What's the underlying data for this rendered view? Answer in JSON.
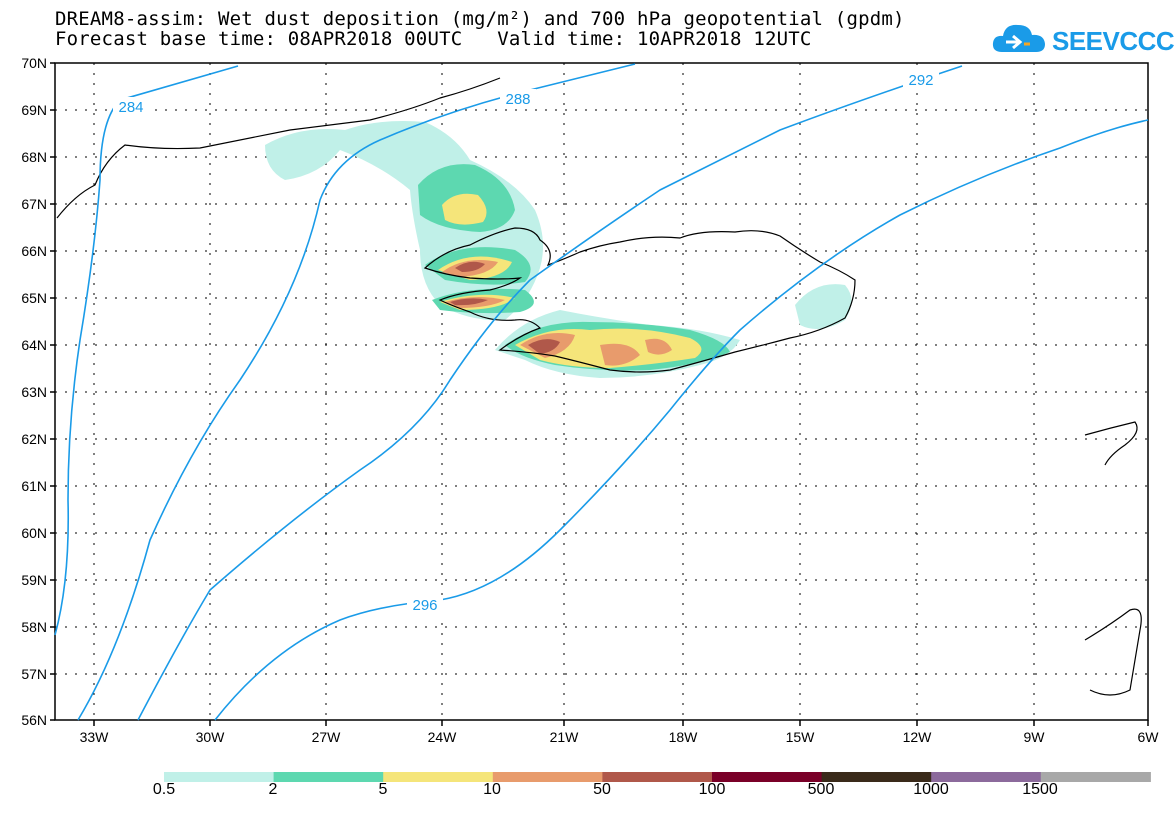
{
  "header": {
    "title_line1": "DREAM8-assim: Wet dust deposition (mg/m²) and 700 hPa geopotential (gpdm)",
    "title_line2": "Forecast base time: 08APR2018 00UTC   Valid time: 10APR2018 12UTC",
    "logo_text": "SEEVCCC"
  },
  "axes": {
    "lat_labels": [
      "70N",
      "69N",
      "68N",
      "67N",
      "66N",
      "65N",
      "64N",
      "63N",
      "62N",
      "61N",
      "60N",
      "59N",
      "58N",
      "57N",
      "56N"
    ],
    "lon_labels": [
      "33W",
      "30W",
      "27W",
      "24W",
      "21W",
      "18W",
      "15W",
      "12W",
      "9W",
      "6W"
    ]
  },
  "contours": {
    "units": "gpdm",
    "labels": [
      "284",
      "288",
      "292",
      "296"
    ]
  },
  "legend": {
    "levels": [
      "0.5",
      "2",
      "5",
      "10",
      "50",
      "100",
      "500",
      "1000",
      "1500"
    ],
    "colors": [
      "#c0f0e8",
      "#5dd8b0",
      "#f5e57a",
      "#e89b6c",
      "#b0584a",
      "#7a0028",
      "#3a2a1a",
      "#8c6a9c",
      "#a8a8a8"
    ]
  }
}
